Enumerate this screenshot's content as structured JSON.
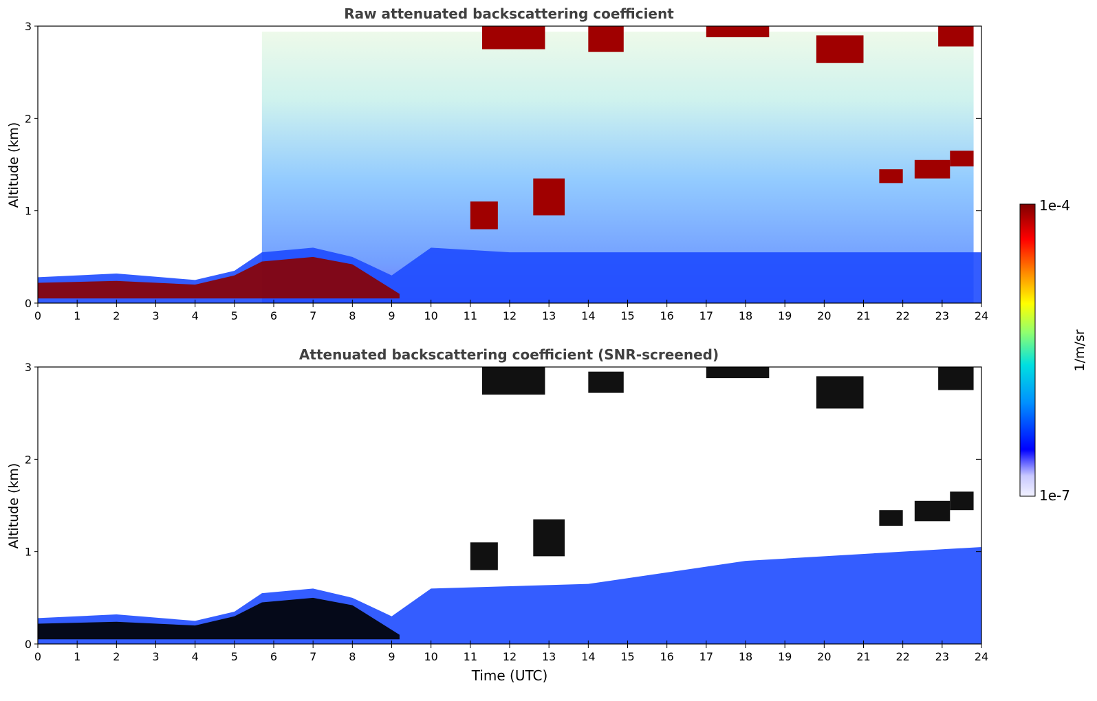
{
  "figure": {
    "colorbar": {
      "label": "1/m/sr",
      "top_label": "1e-4",
      "bottom_label": "1e-7",
      "scale": "log",
      "range": [
        1e-07,
        0.0001
      ],
      "colormap": [
        "#f2f2ff",
        "#c8c8ff",
        "#0000ff",
        "#0090ff",
        "#00e0e0",
        "#90ff70",
        "#ffff00",
        "#ff9000",
        "#ff0000",
        "#800000"
      ]
    }
  },
  "chart_data": [
    {
      "type": "heatmap",
      "title": "Raw attenuated backscattering coefficient",
      "xlabel": "",
      "ylabel": "Altitude (km)",
      "xlim": [
        0,
        24
      ],
      "ylim": [
        0,
        3
      ],
      "xticks": [
        "0",
        "1",
        "2",
        "3",
        "4",
        "5",
        "6",
        "7",
        "8",
        "9",
        "10",
        "11",
        "12",
        "13",
        "14",
        "15",
        "16",
        "17",
        "18",
        "19",
        "20",
        "21",
        "22",
        "23",
        "24"
      ],
      "yticks": [
        "0",
        "1",
        "2",
        "3"
      ],
      "z_units": "1/m/sr",
      "z_scale": "log",
      "boundary_layer_top_km": [
        {
          "x": 0,
          "y": 0.28
        },
        {
          "x": 2,
          "y": 0.32
        },
        {
          "x": 4,
          "y": 0.25
        },
        {
          "x": 5,
          "y": 0.35
        },
        {
          "x": 5.7,
          "y": 0.55
        },
        {
          "x": 7,
          "y": 0.6
        },
        {
          "x": 8,
          "y": 0.5
        },
        {
          "x": 9,
          "y": 0.3
        },
        {
          "x": 10,
          "y": 0.6
        },
        {
          "x": 12,
          "y": 0.55
        },
        {
          "x": 16,
          "y": 0.55
        },
        {
          "x": 24,
          "y": 0.55
        }
      ],
      "cloud_features": [
        {
          "t_start": 11.3,
          "t_end": 12.9,
          "z_bottom": 2.75,
          "z_top": 3.0
        },
        {
          "t_start": 14.0,
          "t_end": 14.9,
          "z_bottom": 2.72,
          "z_top": 3.0
        },
        {
          "t_start": 17.0,
          "t_end": 18.6,
          "z_bottom": 2.88,
          "z_top": 3.0
        },
        {
          "t_start": 19.8,
          "t_end": 21.0,
          "z_bottom": 2.6,
          "z_top": 2.9
        },
        {
          "t_start": 22.9,
          "t_end": 23.8,
          "z_bottom": 2.78,
          "z_top": 3.0
        },
        {
          "t_start": 21.4,
          "t_end": 22.0,
          "z_bottom": 1.3,
          "z_top": 1.45
        },
        {
          "t_start": 22.3,
          "t_end": 23.2,
          "z_bottom": 1.35,
          "z_top": 1.55
        },
        {
          "t_start": 23.2,
          "t_end": 23.8,
          "z_bottom": 1.48,
          "z_top": 1.65
        },
        {
          "t_start": 11.0,
          "t_end": 11.7,
          "z_bottom": 0.8,
          "z_top": 1.1
        },
        {
          "t_start": 12.6,
          "t_end": 13.4,
          "z_bottom": 0.95,
          "z_top": 1.35
        }
      ]
    },
    {
      "type": "heatmap",
      "title": "Attenuated backscattering coefficient (SNR-screened)",
      "xlabel": "Time (UTC)",
      "ylabel": "Altitude (km)",
      "xlim": [
        0,
        24
      ],
      "ylim": [
        0,
        3
      ],
      "xticks": [
        "0",
        "1",
        "2",
        "3",
        "4",
        "5",
        "6",
        "7",
        "8",
        "9",
        "10",
        "11",
        "12",
        "13",
        "14",
        "15",
        "16",
        "17",
        "18",
        "19",
        "20",
        "21",
        "22",
        "23",
        "24"
      ],
      "yticks": [
        "0",
        "1",
        "2",
        "3"
      ],
      "z_units": "1/m/sr",
      "z_scale": "log",
      "boundary_layer_top_km": [
        {
          "x": 0,
          "y": 0.28
        },
        {
          "x": 2,
          "y": 0.32
        },
        {
          "x": 4,
          "y": 0.25
        },
        {
          "x": 5,
          "y": 0.35
        },
        {
          "x": 5.7,
          "y": 0.55
        },
        {
          "x": 7,
          "y": 0.6
        },
        {
          "x": 8,
          "y": 0.5
        },
        {
          "x": 9,
          "y": 0.3
        },
        {
          "x": 10,
          "y": 0.6
        },
        {
          "x": 14,
          "y": 0.65
        },
        {
          "x": 18,
          "y": 0.9
        },
        {
          "x": 24,
          "y": 1.05
        }
      ],
      "cloud_features": [
        {
          "t_start": 11.3,
          "t_end": 12.9,
          "z_bottom": 2.7,
          "z_top": 3.0
        },
        {
          "t_start": 14.0,
          "t_end": 14.9,
          "z_bottom": 2.72,
          "z_top": 2.95
        },
        {
          "t_start": 17.0,
          "t_end": 18.6,
          "z_bottom": 2.88,
          "z_top": 3.0
        },
        {
          "t_start": 19.8,
          "t_end": 21.0,
          "z_bottom": 2.55,
          "z_top": 2.9
        },
        {
          "t_start": 22.9,
          "t_end": 23.8,
          "z_bottom": 2.75,
          "z_top": 3.0
        },
        {
          "t_start": 21.4,
          "t_end": 22.0,
          "z_bottom": 1.28,
          "z_top": 1.45
        },
        {
          "t_start": 22.3,
          "t_end": 23.2,
          "z_bottom": 1.33,
          "z_top": 1.55
        },
        {
          "t_start": 23.2,
          "t_end": 23.8,
          "z_bottom": 1.45,
          "z_top": 1.65
        },
        {
          "t_start": 11.0,
          "t_end": 11.7,
          "z_bottom": 0.8,
          "z_top": 1.1
        },
        {
          "t_start": 12.6,
          "t_end": 13.4,
          "z_bottom": 0.95,
          "z_top": 1.35
        }
      ]
    }
  ]
}
